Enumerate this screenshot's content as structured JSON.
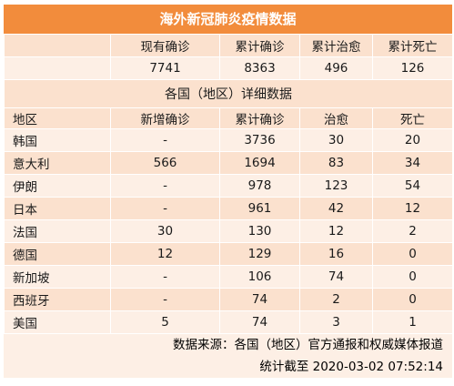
{
  "title": "海外新冠肺炎疫情数据",
  "summary": {
    "headers": [
      "",
      "现有确诊",
      "累计确诊",
      "累计治愈",
      "累计死亡"
    ],
    "values": [
      "",
      "7741",
      "8363",
      "496",
      "126"
    ]
  },
  "detail": {
    "title": "各国（地区）详细数据",
    "columns": [
      "地区",
      "新增确诊",
      "累计确诊",
      "治愈",
      "死亡"
    ],
    "rows": [
      [
        "韩国",
        "-",
        "3736",
        "30",
        "20"
      ],
      [
        "意大利",
        "566",
        "1694",
        "83",
        "34"
      ],
      [
        "伊朗",
        "-",
        "978",
        "123",
        "54"
      ],
      [
        "日本",
        "-",
        "961",
        "42",
        "12"
      ],
      [
        "法国",
        "30",
        "130",
        "12",
        "2"
      ],
      [
        "德国",
        "12",
        "129",
        "16",
        "0"
      ],
      [
        "新加坡",
        "-",
        "106",
        "74",
        "0"
      ],
      [
        "西班牙",
        "-",
        "74",
        "2",
        "0"
      ],
      [
        "美国",
        "5",
        "74",
        "3",
        "1"
      ]
    ]
  },
  "footer": {
    "source": "数据来源：各国（地区）官方通报和权威媒体报道",
    "timestamp": "统计截至 2020-03-02   07:52:14"
  },
  "colors": {
    "title_bg": "#f28c3c",
    "row_dark": "#fbe1ce",
    "row_light": "#fdefe5"
  }
}
